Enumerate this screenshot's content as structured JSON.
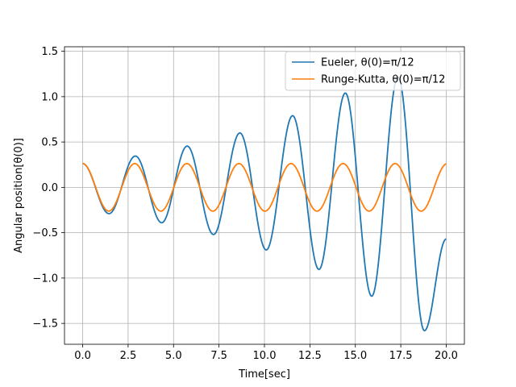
{
  "chart_data": {
    "type": "line",
    "title": "",
    "xlabel": "Time[sec]",
    "ylabel": "Angular position[θ(0)]",
    "xlim": [
      -1.0,
      21.0
    ],
    "ylim": [
      -1.73,
      1.55
    ],
    "xticks": [
      0.0,
      2.5,
      5.0,
      7.5,
      10.0,
      12.5,
      15.0,
      17.5,
      20.0
    ],
    "xtick_labels": [
      "0.0",
      "2.5",
      "5.0",
      "7.5",
      "10.0",
      "12.5",
      "15.0",
      "17.5",
      "20.0"
    ],
    "yticks": [
      -1.5,
      -1.0,
      -0.5,
      0.0,
      0.5,
      1.0,
      1.5
    ],
    "ytick_labels": [
      "−1.5",
      "−1.0",
      "−0.5",
      "0.0",
      "0.5",
      "1.0",
      "1.5"
    ],
    "grid": true,
    "legend_position": "top-right",
    "series": [
      {
        "name": "Eueler, θ(0)=π/12",
        "color": "#1f77b4",
        "x": [
          0.0,
          1.45,
          2.9,
          4.35,
          5.75,
          7.2,
          8.65,
          10.1,
          11.55,
          13.0,
          14.45,
          15.9,
          17.35,
          18.8,
          20.0
        ],
        "y": [
          0.262,
          -0.29,
          0.345,
          -0.39,
          0.455,
          -0.52,
          0.6,
          -0.69,
          0.79,
          -0.905,
          1.04,
          -1.2,
          1.22,
          -1.58,
          -0.57
        ]
      },
      {
        "name": "Runge-Kutta, θ(0)=π/12",
        "color": "#ff7f0e",
        "amplitude": 0.262,
        "period": 2.865,
        "x_range": [
          0.0,
          20.0
        ],
        "x": [
          0.0,
          1.4325,
          2.865,
          4.2975,
          5.73,
          7.1625,
          8.595,
          10.0275,
          11.46,
          12.8925,
          14.325,
          15.7575,
          17.19,
          18.6225,
          20.0
        ],
        "y": [
          0.262,
          -0.262,
          0.262,
          -0.262,
          0.262,
          -0.262,
          0.262,
          -0.262,
          0.262,
          -0.262,
          0.262,
          -0.262,
          0.262,
          -0.262,
          0.262
        ]
      }
    ]
  }
}
